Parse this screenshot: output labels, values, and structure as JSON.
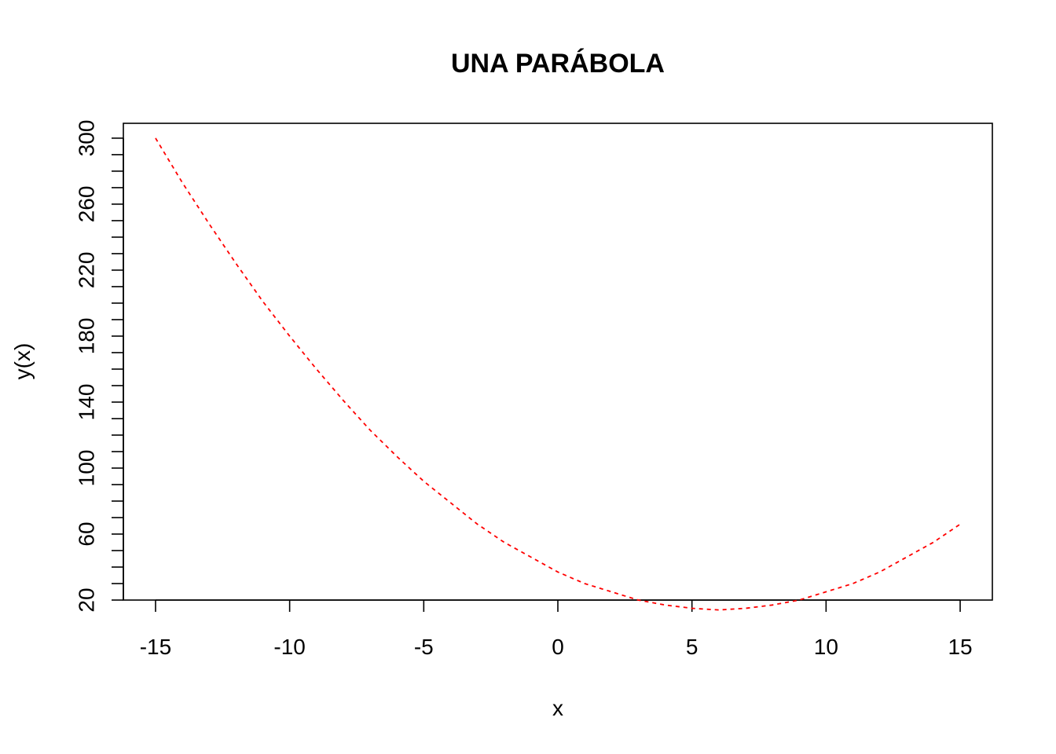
{
  "chart_data": {
    "type": "line",
    "title": "UNA PARÁBOLA",
    "xlabel": "x",
    "ylabel": "y(x)",
    "xlim": [
      -16.2,
      16.2
    ],
    "ylim": [
      20,
      309
    ],
    "x_ticks": [
      -15,
      -10,
      -5,
      0,
      5,
      10,
      15
    ],
    "y_ticks": [
      20,
      30,
      40,
      50,
      60,
      70,
      80,
      90,
      100,
      110,
      120,
      130,
      140,
      150,
      160,
      170,
      180,
      190,
      200,
      210,
      220,
      230,
      240,
      250,
      260,
      270,
      280,
      290,
      300
    ],
    "y_tick_labels": [
      20,
      60,
      100,
      140,
      180,
      220,
      260,
      300
    ],
    "grid": false,
    "series": [
      {
        "color": "#ff0000",
        "line_style": "dashed",
        "x": [
          -15,
          -14,
          -13,
          -12,
          -11,
          -10,
          -9,
          -8,
          -7,
          -6,
          -5,
          -4,
          -3,
          -2,
          -1,
          0,
          1,
          2,
          3,
          4,
          5,
          6,
          7,
          8,
          9,
          10,
          11,
          12,
          13,
          14,
          15
        ],
        "y": [
          300,
          273,
          248,
          224,
          201,
          180,
          160,
          141,
          123,
          107,
          92,
          79,
          66,
          55,
          46,
          37,
          30,
          25,
          20,
          17,
          15,
          14,
          15,
          17,
          20,
          25,
          30,
          37,
          46,
          55,
          66
        ]
      }
    ]
  }
}
